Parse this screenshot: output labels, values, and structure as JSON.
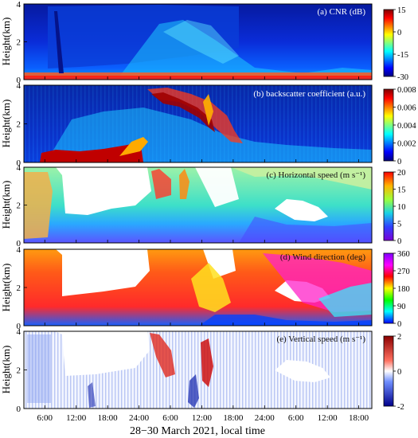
{
  "chart_data": {
    "type": "heatmap",
    "xlabel": "28−30 March 2021, local time",
    "x_ticks": [
      "6:00",
      "12:00",
      "18:00",
      "24:00",
      "6:00",
      "12:00",
      "18:00",
      "24:00",
      "6:00",
      "12:00",
      "18:00"
    ],
    "x_range_hours": [
      2,
      68.5
    ],
    "ylim": [
      0,
      4
    ],
    "y_ticks": [
      "0",
      "2",
      "4"
    ],
    "panels": [
      {
        "id": "cnr",
        "title": "(a) CNR (dB)",
        "ylabel": "Height(km)",
        "colormap": "jet",
        "clim": [
          -30,
          15
        ],
        "colorbar_ticks": [
          "15",
          "0",
          "-15",
          "-30"
        ]
      },
      {
        "id": "backscatter",
        "title": "(b) backscatter coefficient (a.u.)",
        "ylabel": "Height(km)",
        "colormap": "jet",
        "clim": [
          0,
          0.008
        ],
        "colorbar_ticks": [
          "0.008",
          "0.006",
          "0.004",
          "0.002",
          "0"
        ]
      },
      {
        "id": "hspeed",
        "title": "(c) Horizontal speed (m s⁻¹)",
        "ylabel": "Height(km)",
        "colormap": "rainbow",
        "clim": [
          0,
          20
        ],
        "colorbar_ticks": [
          "20",
          "15",
          "10",
          "5",
          "0"
        ]
      },
      {
        "id": "wdir",
        "title": "(d) Wind direction (deg)",
        "ylabel": "Height(km)",
        "colormap": "hsv",
        "clim": [
          0,
          360
        ],
        "colorbar_ticks": [
          "360",
          "270",
          "180",
          "90",
          "0"
        ]
      },
      {
        "id": "vspeed",
        "title": "(e) Vertical speed (m s⁻¹)",
        "ylabel": "Height(km)",
        "colormap": "bwr",
        "clim": [
          -2,
          2
        ],
        "colorbar_ticks": [
          "2",
          "0",
          "-2"
        ]
      }
    ]
  }
}
